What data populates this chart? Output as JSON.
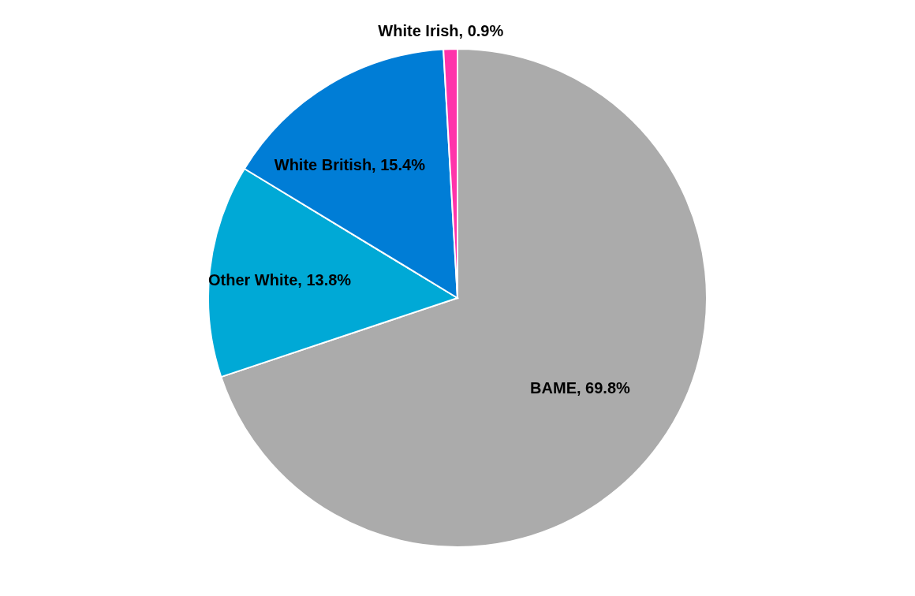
{
  "chart_data": {
    "type": "pie",
    "categories": [
      "BAME",
      "Other White",
      "White British",
      "White Irish"
    ],
    "values": [
      69.8,
      13.8,
      15.4,
      0.9
    ],
    "colors": [
      "#ababab",
      "#00a9d6",
      "#007dd6",
      "#ff33aa"
    ],
    "value_labels": [
      ",  69.8%",
      ", 13.8%",
      ", 15.4%",
      ", 0.9%"
    ]
  }
}
